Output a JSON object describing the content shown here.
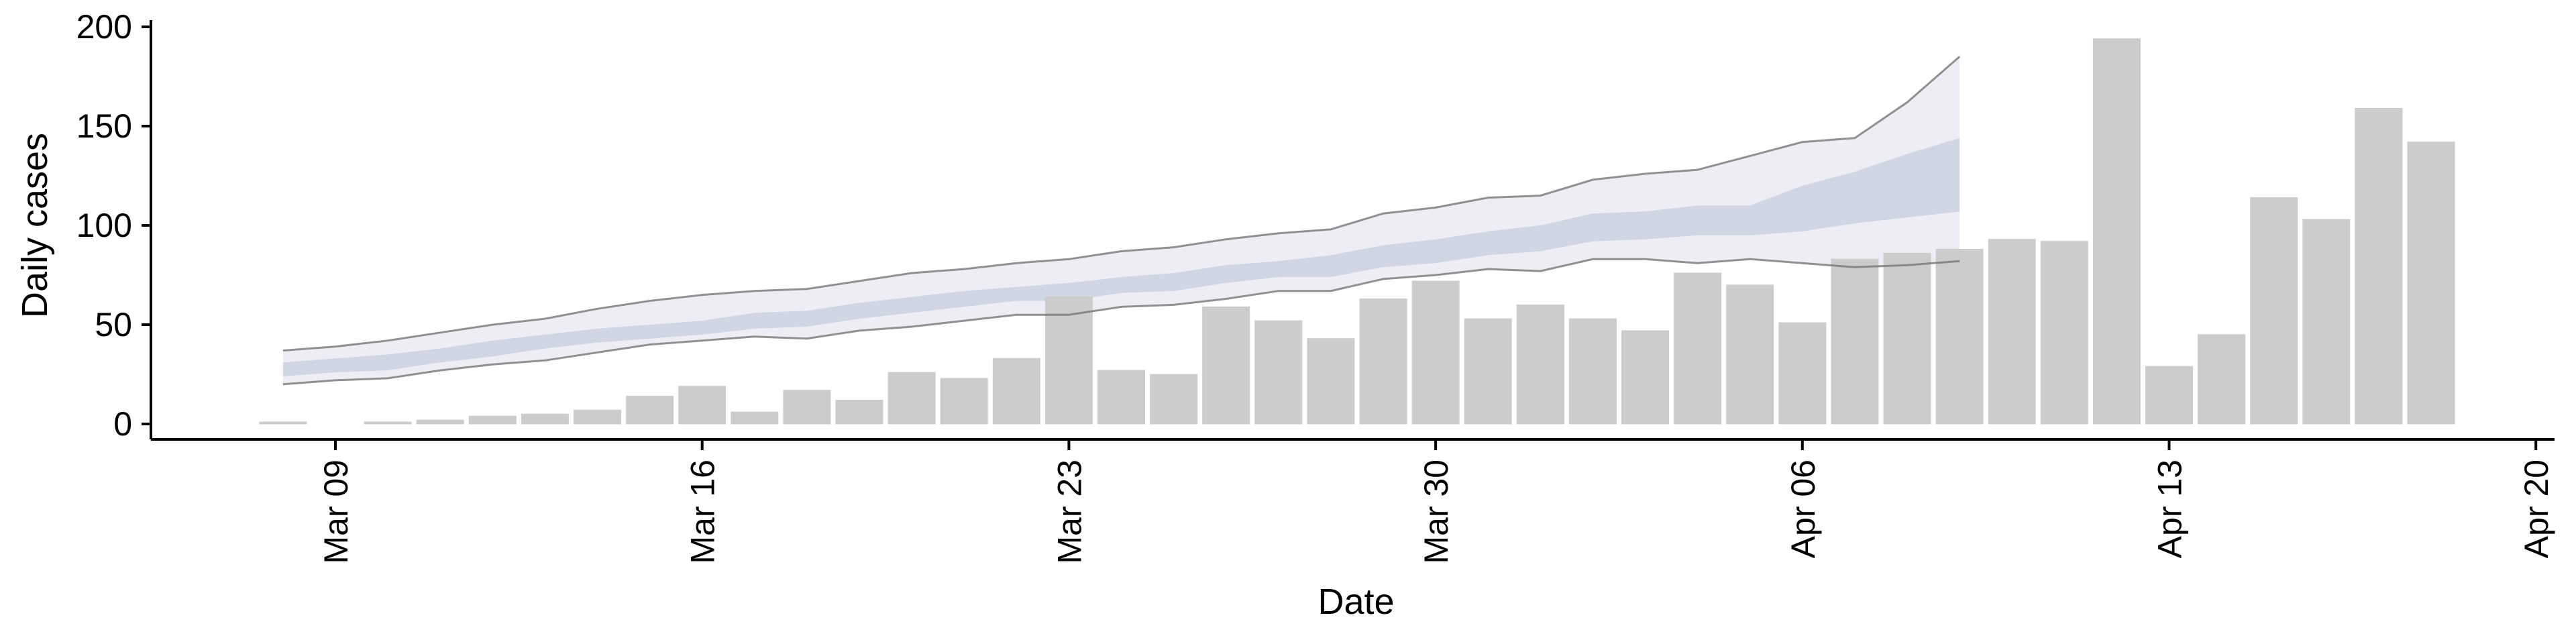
{
  "chart_data": {
    "type": "bar",
    "title": "",
    "xlabel": "Date",
    "ylabel": "Daily cases",
    "ylim": [
      0,
      200
    ],
    "x_ticks": [
      "2020-03-09",
      "2020-03-16",
      "2020-03-23",
      "2020-03-30",
      "2020-04-06",
      "2020-04-13",
      "2020-04-20"
    ],
    "x_tick_labels": [
      "Mar 09",
      "Mar 16",
      "Mar 23",
      "Mar 30",
      "Apr 06",
      "Apr 13",
      "Apr 20"
    ],
    "y_ticks": [
      0,
      50,
      100,
      150,
      200
    ],
    "y_tick_labels": [
      "0",
      "50",
      "100",
      "150",
      "200"
    ],
    "grid": false,
    "legend": "none",
    "colors": {
      "bars": "#cccccc",
      "band_outer": "#e6e8f0",
      "band_inner": "#c8cee0",
      "bound_lines": "#777777"
    },
    "dates": [
      "2020-03-08",
      "2020-03-09",
      "2020-03-10",
      "2020-03-11",
      "2020-03-12",
      "2020-03-13",
      "2020-03-14",
      "2020-03-15",
      "2020-03-16",
      "2020-03-17",
      "2020-03-18",
      "2020-03-19",
      "2020-03-20",
      "2020-03-21",
      "2020-03-22",
      "2020-03-23",
      "2020-03-24",
      "2020-03-25",
      "2020-03-26",
      "2020-03-27",
      "2020-03-28",
      "2020-03-29",
      "2020-03-30",
      "2020-03-31",
      "2020-04-01",
      "2020-04-02",
      "2020-04-03",
      "2020-04-04",
      "2020-04-05",
      "2020-04-06",
      "2020-04-07",
      "2020-04-08",
      "2020-04-09",
      "2020-04-10",
      "2020-04-11",
      "2020-04-12",
      "2020-04-13",
      "2020-04-14",
      "2020-04-15",
      "2020-04-16",
      "2020-04-17",
      "2020-04-18"
    ],
    "series": [
      {
        "type": "bar",
        "values": [
          1,
          0,
          1,
          2,
          4,
          5,
          7,
          14,
          19,
          6,
          17,
          12,
          26,
          23,
          33,
          64,
          27,
          25,
          59,
          52,
          43,
          63,
          72,
          53,
          60,
          53,
          47,
          76,
          70,
          51,
          83,
          86,
          88,
          93,
          92,
          194,
          29,
          45,
          114,
          103,
          159,
          142
        ]
      }
    ],
    "band": {
      "dates": [
        "2020-03-08",
        "2020-03-09",
        "2020-03-10",
        "2020-03-11",
        "2020-03-12",
        "2020-03-13",
        "2020-03-14",
        "2020-03-15",
        "2020-03-16",
        "2020-03-17",
        "2020-03-18",
        "2020-03-19",
        "2020-03-20",
        "2020-03-21",
        "2020-03-22",
        "2020-03-23",
        "2020-03-24",
        "2020-03-25",
        "2020-03-26",
        "2020-03-27",
        "2020-03-28",
        "2020-03-29",
        "2020-03-30",
        "2020-03-31",
        "2020-04-01",
        "2020-04-02",
        "2020-04-03",
        "2020-04-04",
        "2020-04-05",
        "2020-04-06",
        "2020-04-07",
        "2020-04-08",
        "2020-04-09"
      ],
      "outer_upper": [
        37,
        39,
        42,
        46,
        50,
        53,
        58,
        62,
        65,
        67,
        68,
        72,
        76,
        78,
        81,
        83,
        87,
        89,
        93,
        96,
        98,
        106,
        109,
        114,
        115,
        123,
        126,
        128,
        135,
        142,
        144,
        162,
        185
      ],
      "outer_lower": [
        20,
        22,
        23,
        27,
        30,
        32,
        36,
        40,
        42,
        44,
        43,
        47,
        49,
        52,
        55,
        55,
        59,
        60,
        63,
        67,
        67,
        73,
        75,
        78,
        77,
        83,
        83,
        81,
        83,
        81,
        79,
        80,
        82
      ],
      "inner_upper": [
        31,
        33,
        35,
        38,
        42,
        45,
        48,
        50,
        52,
        56,
        57,
        61,
        64,
        67,
        69,
        71,
        74,
        76,
        80,
        82,
        85,
        90,
        93,
        97,
        100,
        106,
        107,
        110,
        110,
        120,
        127,
        136,
        144
      ],
      "inner_lower": [
        24,
        26,
        27,
        31,
        34,
        38,
        41,
        43,
        45,
        48,
        49,
        53,
        56,
        59,
        62,
        62,
        66,
        67,
        71,
        74,
        74,
        79,
        81,
        85,
        87,
        92,
        93,
        95,
        95,
        97,
        101,
        104,
        107
      ]
    }
  }
}
